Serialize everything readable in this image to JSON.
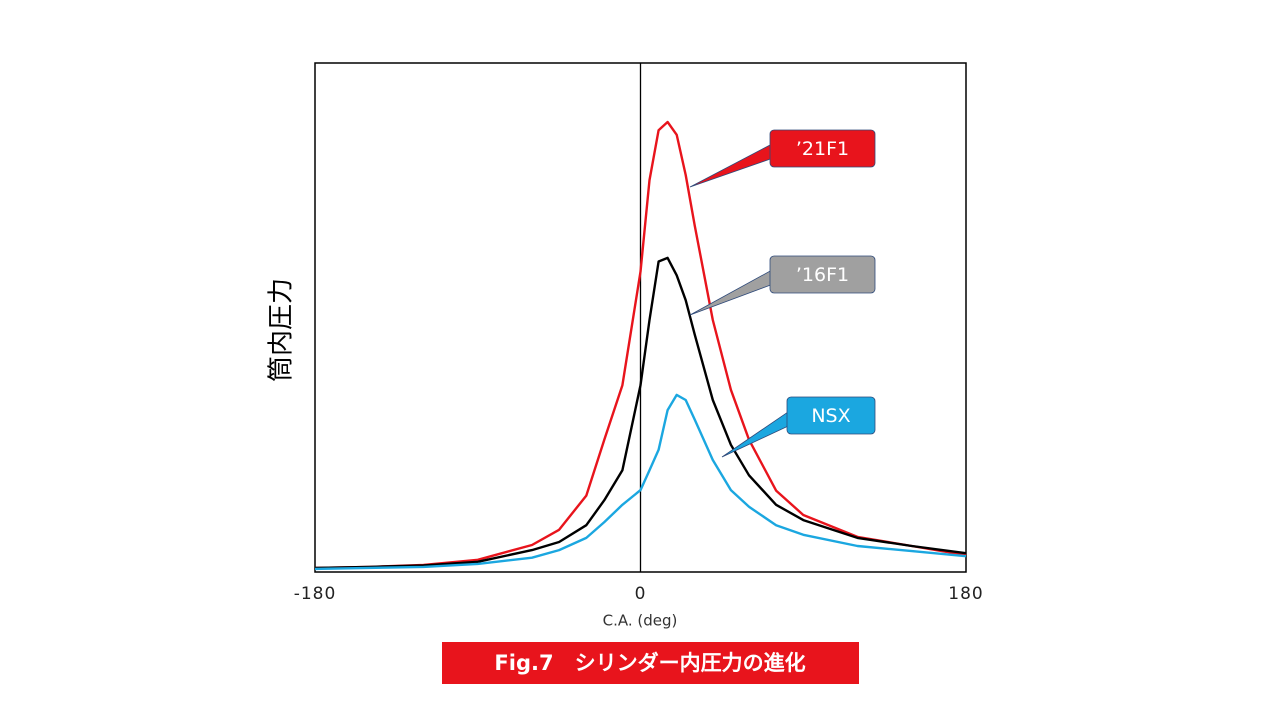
{
  "chart_data": {
    "type": "line",
    "caption": "Fig.7　シリンダー内圧力の進化",
    "y_label": "筒内圧力",
    "x_label": "C.A. (deg)",
    "x": [
      -180,
      -150,
      -120,
      -90,
      -60,
      -45,
      -30,
      -20,
      -10,
      0,
      5,
      10,
      15,
      20,
      25,
      30,
      40,
      50,
      60,
      75,
      90,
      120,
      150,
      180
    ],
    "xlim": [
      -180,
      180
    ],
    "xticks": [
      -180,
      0,
      180
    ],
    "ylim": [
      0,
      100
    ],
    "series": [
      {
        "name": "’21F1",
        "color": "#e8141c",
        "values": [
          0.8,
          1,
          1.4,
          2.4,
          5.3,
          8.3,
          15,
          26,
          36.7,
          59,
          77,
          86.8,
          88.4,
          85.9,
          78,
          68,
          49.5,
          35.8,
          26,
          16,
          11.2,
          6.9,
          5.1,
          3.3
        ]
      },
      {
        "name": "’16F1",
        "color": "#000000",
        "values": [
          0.8,
          1,
          1.3,
          2,
          4.3,
          5.9,
          9.2,
          14.1,
          20,
          36.7,
          49.5,
          61,
          61.7,
          58.3,
          53.4,
          46.6,
          33.8,
          25,
          19,
          13.2,
          10.2,
          6.7,
          5.1,
          3.7
        ]
      },
      {
        "name": "NSX",
        "color": "#1ba7e0",
        "values": [
          0.6,
          0.8,
          1,
          1.6,
          2.8,
          4.3,
          6.7,
          9.8,
          13.2,
          16.1,
          20,
          24,
          31.8,
          34.8,
          33.8,
          29.9,
          22,
          16.1,
          12.8,
          9.2,
          7.3,
          5.1,
          4.1,
          3.1
        ]
      }
    ]
  }
}
